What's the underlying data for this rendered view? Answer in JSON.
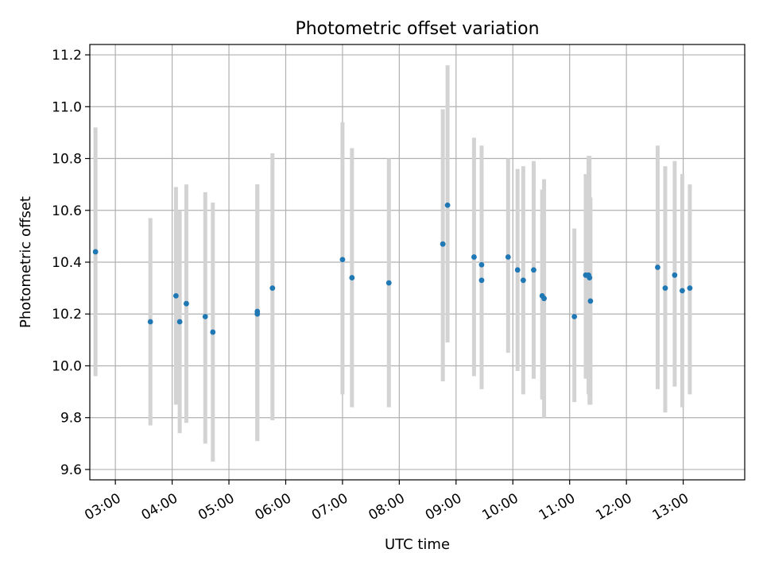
{
  "chart_data": {
    "type": "scatter",
    "title": "Photometric offset variation",
    "xlabel": "UTC time",
    "ylabel": "Photometric offset",
    "x_unit": "UTC time (HH:MM)",
    "xlim": [
      "02:33",
      "14:05"
    ],
    "ylim": [
      9.56,
      11.24
    ],
    "x_ticks": [
      "03:00",
      "04:00",
      "05:00",
      "06:00",
      "07:00",
      "08:00",
      "09:00",
      "10:00",
      "11:00",
      "12:00",
      "13:00"
    ],
    "y_ticks": [
      "9.6",
      "9.8",
      "10.0",
      "10.2",
      "10.4",
      "10.6",
      "10.8",
      "11.0",
      "11.2"
    ],
    "grid": true,
    "point_color": "#1f77b4",
    "errorbar_color": "#d3d3d3",
    "points": [
      {
        "x": "02:39",
        "y": 10.44,
        "ylow": 9.96,
        "yhigh": 10.92
      },
      {
        "x": "03:37",
        "y": 10.17,
        "ylow": 9.77,
        "yhigh": 10.57
      },
      {
        "x": "04:04",
        "y": 10.27,
        "ylow": 9.85,
        "yhigh": 10.69
      },
      {
        "x": "04:08",
        "y": 10.17,
        "ylow": 9.74,
        "yhigh": 10.6
      },
      {
        "x": "04:15",
        "y": 10.24,
        "ylow": 9.78,
        "yhigh": 10.7
      },
      {
        "x": "04:35",
        "y": 10.19,
        "ylow": 9.7,
        "yhigh": 10.67
      },
      {
        "x": "04:43",
        "y": 10.13,
        "ylow": 9.63,
        "yhigh": 10.63
      },
      {
        "x": "05:30",
        "y": 10.21,
        "ylow": 9.71,
        "yhigh": 10.7
      },
      {
        "x": "05:30",
        "y": 10.2,
        "ylow": 9.71,
        "yhigh": 10.7
      },
      {
        "x": "05:46",
        "y": 10.3,
        "ylow": 9.79,
        "yhigh": 10.82
      },
      {
        "x": "07:00",
        "y": 10.41,
        "ylow": 9.89,
        "yhigh": 10.94
      },
      {
        "x": "07:10",
        "y": 10.34,
        "ylow": 9.84,
        "yhigh": 10.84
      },
      {
        "x": "07:49",
        "y": 10.32,
        "ylow": 9.84,
        "yhigh": 10.8
      },
      {
        "x": "08:46",
        "y": 10.47,
        "ylow": 9.94,
        "yhigh": 10.99
      },
      {
        "x": "08:51",
        "y": 10.62,
        "ylow": 10.09,
        "yhigh": 11.16
      },
      {
        "x": "09:19",
        "y": 10.42,
        "ylow": 9.96,
        "yhigh": 10.88
      },
      {
        "x": "09:27",
        "y": 10.39,
        "ylow": 10.02,
        "yhigh": 10.76
      },
      {
        "x": "09:27",
        "y": 10.33,
        "ylow": 9.91,
        "yhigh": 10.85
      },
      {
        "x": "09:55",
        "y": 10.42,
        "ylow": 10.05,
        "yhigh": 10.8
      },
      {
        "x": "10:05",
        "y": 10.37,
        "ylow": 9.98,
        "yhigh": 10.76
      },
      {
        "x": "10:11",
        "y": 10.33,
        "ylow": 9.89,
        "yhigh": 10.77
      },
      {
        "x": "10:22",
        "y": 10.37,
        "ylow": 9.95,
        "yhigh": 10.79
      },
      {
        "x": "10:31",
        "y": 10.27,
        "ylow": 9.87,
        "yhigh": 10.68
      },
      {
        "x": "10:33",
        "y": 10.26,
        "ylow": 9.8,
        "yhigh": 10.72
      },
      {
        "x": "11:05",
        "y": 10.19,
        "ylow": 9.86,
        "yhigh": 10.53
      },
      {
        "x": "11:17",
        "y": 10.35,
        "ylow": 9.95,
        "yhigh": 10.74
      },
      {
        "x": "11:20",
        "y": 10.35,
        "ylow": 9.89,
        "yhigh": 10.81
      },
      {
        "x": "11:21",
        "y": 10.34,
        "ylow": 9.85,
        "yhigh": 10.81
      },
      {
        "x": "11:22",
        "y": 10.25,
        "ylow": 9.85,
        "yhigh": 10.65
      },
      {
        "x": "12:33",
        "y": 10.38,
        "ylow": 9.91,
        "yhigh": 10.85
      },
      {
        "x": "12:41",
        "y": 10.3,
        "ylow": 9.82,
        "yhigh": 10.77
      },
      {
        "x": "12:51",
        "y": 10.35,
        "ylow": 9.92,
        "yhigh": 10.79
      },
      {
        "x": "12:59",
        "y": 10.29,
        "ylow": 9.84,
        "yhigh": 10.74
      },
      {
        "x": "13:07",
        "y": 10.3,
        "ylow": 9.89,
        "yhigh": 10.7
      }
    ]
  }
}
